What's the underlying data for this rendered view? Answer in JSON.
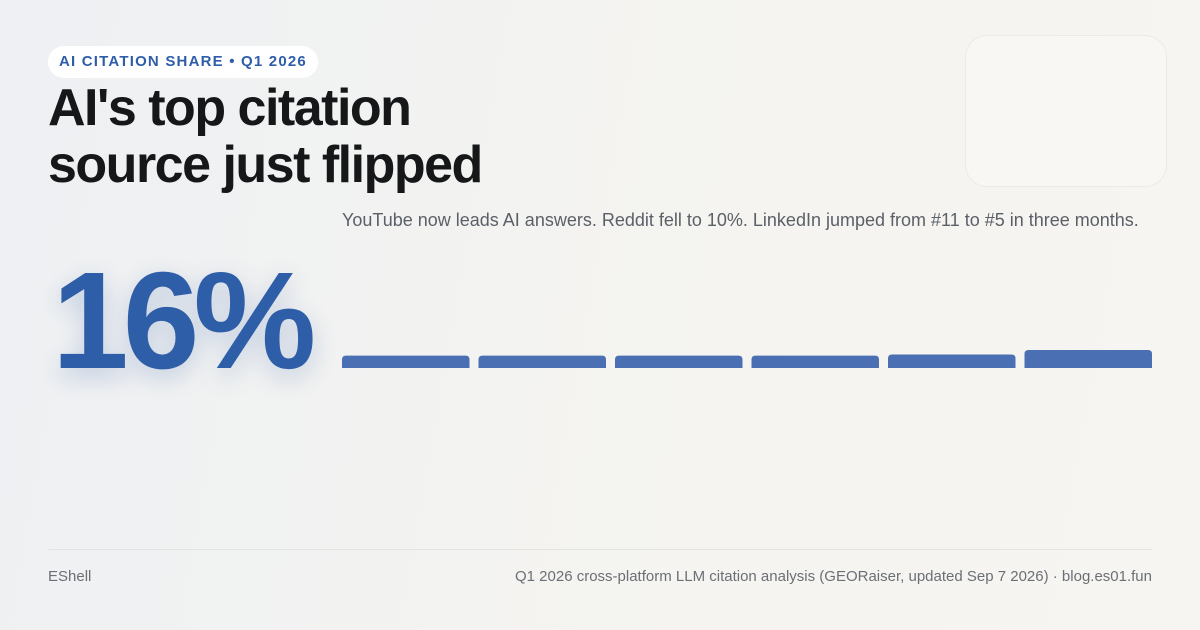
{
  "badge": "AI CITATION SHARE • Q1 2026",
  "title": "AI's top citation source just flipped",
  "headline_stat": "16%",
  "subtitle": "YouTube now leads AI answers. Reddit fell to 10%. LinkedIn jumped from #11 to #5 in three months.",
  "chart_data": {
    "type": "bar",
    "categories": [
      null,
      null,
      null,
      null,
      null,
      null
    ],
    "values": [
      11,
      11,
      11,
      11,
      12,
      16
    ],
    "color": "#4a70b3"
  },
  "footer": {
    "left": "EShell",
    "right": "Q1 2026 cross-platform LLM citation analysis (GEORaiser, updated Sep 7 2026) · blog.es01.fun"
  }
}
